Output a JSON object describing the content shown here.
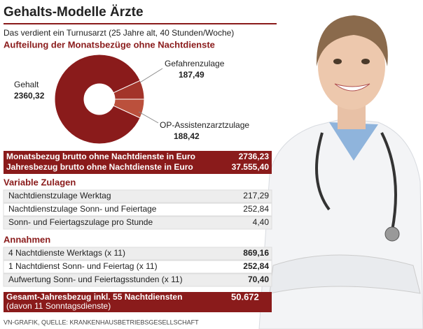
{
  "chart_data": {
    "type": "pie",
    "title": "Gehalts-Modelle Ärzte",
    "subtitle": "Das verdient ein Turnusarzt (25 Jahre alt, 40 Stunden/Woche)",
    "heading": "Aufteilung der Monatsbezüge ohne Nachtdienste",
    "categories": [
      "Gehalt",
      "Gefahrenzulage",
      "OP-Assistenzarztzulage"
    ],
    "values": [
      2360.32,
      187.49,
      188.42
    ],
    "value_labels": [
      "2360,32",
      "187,49",
      "188,42"
    ],
    "colors": [
      "#8a1b1b",
      "#a3342a",
      "#bb503c"
    ]
  },
  "summary": [
    [
      "Monatsbezug brutto ohne Nachtdienste in Euro",
      "2736,23"
    ],
    [
      "Jahresbezug brutto ohne Nachtdienste in Euro",
      "37.555,40"
    ]
  ],
  "variable": {
    "title": "Variable Zulagen",
    "rows": [
      [
        "Nachtdienstzulage Werktag",
        "217,29"
      ],
      [
        "Nachtdienstzulage Sonn- und Feiertage",
        "252,84"
      ],
      [
        "Sonn- und Feiertagszulage pro Stunde",
        "4,40"
      ]
    ]
  },
  "annahmen": {
    "title": "Annahmen",
    "rows": [
      [
        "4 Nachtdienste Werktags (x 11)",
        "869,16"
      ],
      [
        "1 Nachtdienst Sonn- und Feiertag (x 11)",
        "252,84"
      ],
      [
        "Aufwertung Sonn- und Feiertagsstunden (x 11)",
        "70,40"
      ]
    ]
  },
  "total": {
    "label": "Gesamt-Jahresbezug inkl. 55 Nachtdiensten",
    "note": "(davon 11 Sonntagsdienste)",
    "value": "50.672"
  },
  "source": "VN-GRAFIK, QUELLE: KRANKENHAUSBETRIEBSGESELLSCHAFT"
}
